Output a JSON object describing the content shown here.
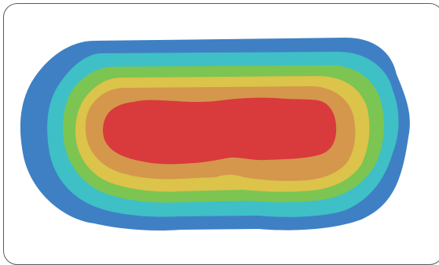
{
  "figure": {
    "kind": "contour heat map",
    "levels": [
      {
        "band": 1,
        "color": "#3f80c5"
      },
      {
        "band": 2,
        "color": "#3ec0c6"
      },
      {
        "band": 3,
        "color": "#7cc552"
      },
      {
        "band": 4,
        "color": "#dcc34a"
      },
      {
        "band": 5,
        "color": "#d4974c"
      },
      {
        "band": 6,
        "color": "#d93a3c"
      }
    ]
  }
}
